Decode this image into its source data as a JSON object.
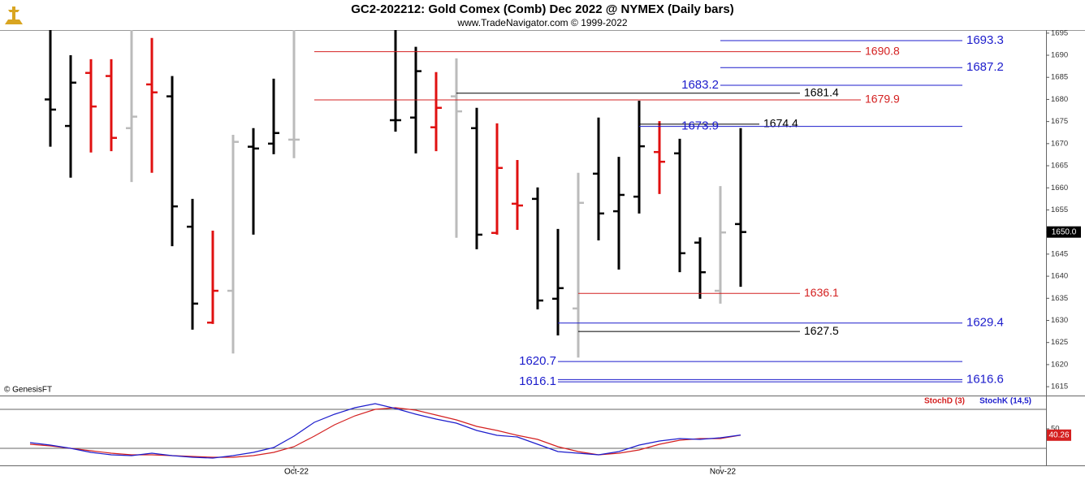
{
  "chart_data": {
    "type": "ohlc",
    "title": "GC2-202212:  Gold Comex (Comb) Dec 2022 @ NYMEX  (Daily bars)",
    "subtitle": "www.TradeNavigator.com © 1999-2022",
    "source": "© GenesisFT",
    "categories": [
      null,
      null,
      null,
      null,
      null,
      null,
      null,
      null,
      null,
      null,
      null,
      null,
      null,
      "Oct-22",
      null,
      null,
      null,
      null,
      null,
      null,
      null,
      null,
      null,
      null,
      null,
      null,
      null,
      null,
      null,
      null,
      null,
      null,
      null,
      null,
      "Nov-22",
      null
    ],
    "open": [
      null,
      1680,
      1674.0,
      1686.0,
      1685.3,
      1673.5,
      1683.4,
      1680.7,
      1651.2,
      1629.5,
      1636.7,
      1669.3,
      1670.0,
      1670.9,
      null,
      null,
      null,
      null,
      1675.3,
      1675.9,
      1673.7,
      1680.7,
      1673.5,
      1649.8,
      1656.4,
      1657.5,
      1634.9,
      1632.7,
      1663.2,
      1654.7,
      1658.0,
      1668.1,
      1667.8,
      1647.6,
      1636.7,
      1651.8
    ],
    "high": [
      null,
      1696,
      1690.0,
      1689.1,
      1689.1,
      1696,
      1693.9,
      1685.3,
      1657.5,
      1650.3,
      1672.0,
      1673.5,
      1684.7,
      1696,
      null,
      null,
      null,
      null,
      1696,
      1691.9,
      1686.2,
      1689.3,
      1678.1,
      1674.6,
      1666.3,
      1660.1,
      1650.7,
      1663.4,
      1675.9,
      1667.0,
      1679.7,
      1675.1,
      1671.1,
      1648.8,
      1660.4,
      1673.5
    ],
    "low": [
      null,
      1669.3,
      1662.3,
      1668.0,
      1668.3,
      1661.3,
      1663.4,
      1646.8,
      1627.9,
      1629.2,
      1622.5,
      1649.4,
      1667.6,
      1666.7,
      null,
      null,
      null,
      null,
      1672.7,
      1667.8,
      1668.3,
      1648.7,
      1646.1,
      1649.4,
      1650.5,
      1632.5,
      1626.6,
      1621.6,
      1648.1,
      1641.5,
      1654.2,
      1658.6,
      1640.9,
      1634.9,
      1633.8,
      1637.6
    ],
    "close": [
      null,
      1677.7,
      1683.8,
      1678.4,
      1671.3,
      1676.1,
      1681.6,
      1655.8,
      1633.8,
      1636.7,
      1670.4,
      1668.9,
      1672.4,
      1670.9,
      null,
      null,
      null,
      null,
      1675.3,
      1686.4,
      1678.1,
      1677.3,
      1649.4,
      1664.5,
      1656.0,
      1634.5,
      1637.3,
      1656.6,
      1654.2,
      1658.4,
      1669.4,
      1665.9,
      1645.2,
      1640.9,
      1649.9,
      1650.0
    ],
    "colors": [
      null,
      "#000000",
      "#000000",
      "#e01010",
      "#e01010",
      "#bbbbbb",
      "#e01010",
      "#000000",
      "#000000",
      "#e01010",
      "#bbbbbb",
      "#000000",
      "#000000",
      "#bbbbbb",
      null,
      null,
      null,
      null,
      "#000000",
      "#000000",
      "#e01010",
      "#bbbbbb",
      "#000000",
      "#e01010",
      "#e01010",
      "#000000",
      "#000000",
      "#bbbbbb",
      "#000000",
      "#000000",
      "#000000",
      "#e01010",
      "#000000",
      "#000000",
      "#bbbbbb",
      "#000000"
    ],
    "ylim": [
      1613,
      1695.7
    ],
    "yticks": [
      1615,
      1620,
      1625,
      1630,
      1635,
      1640,
      1645,
      1650,
      1655,
      1660,
      1665,
      1670,
      1675,
      1680,
      1685,
      1690,
      1695
    ],
    "last_price": {
      "value": 1650,
      "label": "1650.0"
    },
    "levels": [
      {
        "value": 1693.3,
        "color": "#1c1ccc"
      },
      {
        "value": 1690.8,
        "color": "#d42020"
      },
      {
        "value": 1687.2,
        "color": "#1c1ccc"
      },
      {
        "value": 1683.2,
        "color": "#1c1ccc"
      },
      {
        "value": 1681.4,
        "color": "#000000"
      },
      {
        "value": 1679.9,
        "color": "#d42020"
      },
      {
        "value": 1674.4,
        "color": "#000000"
      },
      {
        "value": 1673.9,
        "color": "#1c1ccc"
      },
      {
        "value": 1636.1,
        "color": "#d42020"
      },
      {
        "value": 1629.4,
        "color": "#1c1ccc"
      },
      {
        "value": 1627.5,
        "color": "#000000"
      },
      {
        "value": 1620.7,
        "color": "#1c1ccc"
      },
      {
        "value": 1616.6,
        "color": "#1c1ccc"
      },
      {
        "value": 1616.1,
        "color": "#1c1ccc"
      }
    ],
    "indicator": {
      "type": "line",
      "ylim": [
        -6.25,
        101.25
      ],
      "yticks": [
        50
      ],
      "bands": [
        20,
        80
      ],
      "series": [
        {
          "name": "StochD (3)",
          "color": "#d42020",
          "values": [
            26.25,
            23.75,
            20,
            16.25,
            12.5,
            10,
            10,
            8.75,
            7.5,
            6.25,
            6.25,
            8.75,
            13.75,
            22.5,
            38.75,
            56.25,
            70,
            80,
            82.5,
            78.75,
            71.25,
            63.75,
            53.75,
            47.5,
            40,
            33.75,
            22.5,
            15,
            10,
            12.5,
            17.5,
            26.25,
            32.5,
            35,
            35,
            40.26
          ]
        },
        {
          "name": "StochK (14,5)",
          "color": "#1c1ccc",
          "values": [
            28.75,
            25,
            20,
            13.75,
            10,
            8.75,
            12.5,
            8.75,
            6.25,
            5,
            8.75,
            13.75,
            21.25,
            38.75,
            60,
            72.5,
            82.5,
            88.75,
            81.25,
            72.5,
            65,
            58.75,
            47.5,
            40,
            37.5,
            26.25,
            15,
            12.5,
            10,
            15,
            25,
            31.25,
            35,
            33.75,
            36.25,
            40.5
          ]
        }
      ]
    }
  }
}
